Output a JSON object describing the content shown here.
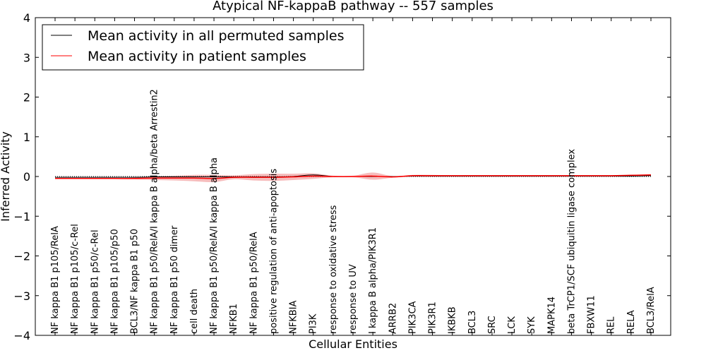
{
  "chart_data": {
    "type": "line",
    "title": "Atypical NF-kappaB pathway -- 557 samples",
    "xlabel": "Cellular Entities",
    "ylabel": "Inferred Activity",
    "ylim": [
      -4,
      4
    ],
    "yticks": [
      "−4",
      "−3",
      "−2",
      "−1",
      "0",
      "1",
      "2",
      "3",
      "4"
    ],
    "grid": false,
    "legend_position": "top-left",
    "categories": [
      "NF kappa B1 p105/RelA",
      "NF kappa B1 p105/c-Rel",
      "NF kappa B1 p50/c-Rel",
      "NF kappa B1 p105/p50",
      "BCL3/NF kappa B1 p50",
      "NF kappa B1 p50/RelA/I kappa B alpha/beta Arrestin2",
      "NF kappa B1 p50 dimer",
      "cell death",
      "NF kappa B1 p50/RelA/I kappa B alpha",
      "NFKB1",
      "NF kappa B1 p50/RelA",
      "positive regulation of anti-apoptosis",
      "NFKBIA",
      "PI3K",
      "response to oxidative stress",
      "response to UV",
      "I kappa B alpha/PIK3R1",
      "ARRB2",
      "PIK3CA",
      "PIK3R1",
      "IKBKB",
      "BCL3",
      "SRC",
      "LCK",
      "SYK",
      "MAPK14",
      "beta TrCP1/SCF ubiquitin ligase complex",
      "FBXW11",
      "REL",
      "RELA",
      "BCL3/RelA"
    ],
    "series": [
      {
        "name": "Mean activity in all permuted samples",
        "color": "#000000",
        "values": [
          -0.02,
          -0.02,
          -0.02,
          -0.02,
          -0.02,
          -0.01,
          -0.01,
          -0.01,
          -0.01,
          -0.01,
          -0.01,
          -0.01,
          0.0,
          0.04,
          0.0,
          0.0,
          0.0,
          0.0,
          0.01,
          0.01,
          0.01,
          0.01,
          0.01,
          0.01,
          0.01,
          0.01,
          0.01,
          0.01,
          0.01,
          0.01,
          0.02
        ]
      },
      {
        "name": "Mean activity in patient samples",
        "color": "#ff0000",
        "band_color": "#f2a0a0",
        "values": [
          -0.05,
          -0.05,
          -0.05,
          -0.05,
          -0.05,
          -0.04,
          -0.04,
          -0.04,
          -0.05,
          -0.02,
          -0.02,
          -0.02,
          -0.01,
          0.01,
          0.0,
          0.0,
          0.01,
          -0.01,
          0.02,
          0.02,
          0.02,
          0.02,
          0.02,
          0.02,
          0.02,
          0.02,
          0.02,
          0.02,
          0.02,
          0.03,
          0.04
        ],
        "spread": [
          0.01,
          0.01,
          0.01,
          0.01,
          0.02,
          0.05,
          0.06,
          0.08,
          0.09,
          0.05,
          0.08,
          0.09,
          0.08,
          0.07,
          0.02,
          0.02,
          0.09,
          0.02,
          0.02,
          0.02,
          0.01,
          0.01,
          0.01,
          0.01,
          0.01,
          0.01,
          0.01,
          0.01,
          0.01,
          0.01,
          0.02
        ]
      }
    ]
  }
}
